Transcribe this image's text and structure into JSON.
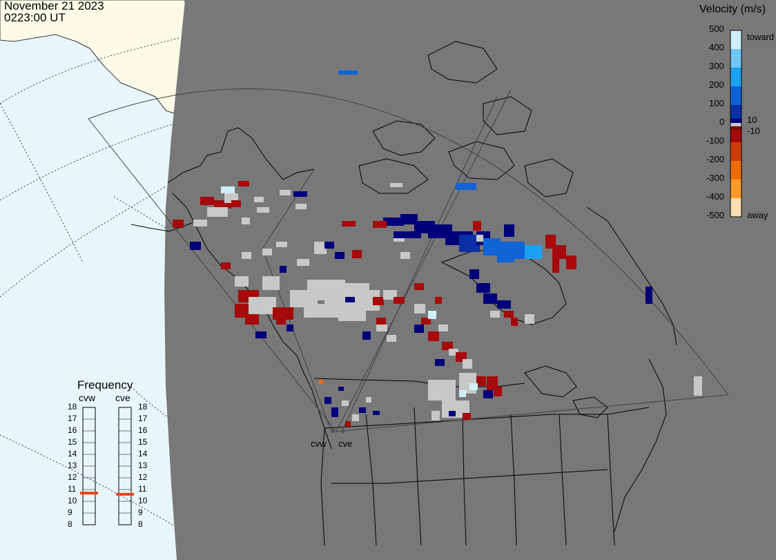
{
  "header": {
    "date": "November 21 2023",
    "time": "0223:00 UT"
  },
  "colorbar": {
    "title": "Velocity (m/s)",
    "ticks": [
      "500",
      "400",
      "300",
      "200",
      "100",
      "10",
      "0",
      "-10",
      "-100",
      "-200",
      "-300",
      "-400",
      "-500"
    ],
    "toward_label": "toward",
    "away_label": "away",
    "colors": {
      "toward_500": "#cfeefc",
      "toward_400": "#70c6f4",
      "toward_300": "#1aa2f0",
      "toward_200": "#1163d6",
      "toward_100": "#0a2fa6",
      "toward_10": "#00007a",
      "ground_scatter": "#c8c8c8",
      "away_10": "#7a0000",
      "away_100": "#a60a0a",
      "away_200": "#c93b08",
      "away_300": "#ec6c05",
      "away_400": "#fb9a2c",
      "away_500": "#fddcb0"
    }
  },
  "radars": {
    "cvw_label": "cvw",
    "cve_label": "cve"
  },
  "frequency": {
    "title": "Frequency",
    "left_label": "cvw",
    "right_label": "cve",
    "ticks": [
      "18",
      "17",
      "16",
      "15",
      "14",
      "13",
      "12",
      "11",
      "10",
      "9",
      "8"
    ],
    "cvw_value_mhz": 10.7,
    "cve_value_mhz": 10.6,
    "marker_color": "#e8441b"
  },
  "map_colors": {
    "night_shade": "#787878",
    "ocean_day": "#e8f6fc",
    "land_day": "#fbfbe8",
    "coastline": "#000000",
    "fov_outline": "#505050"
  }
}
